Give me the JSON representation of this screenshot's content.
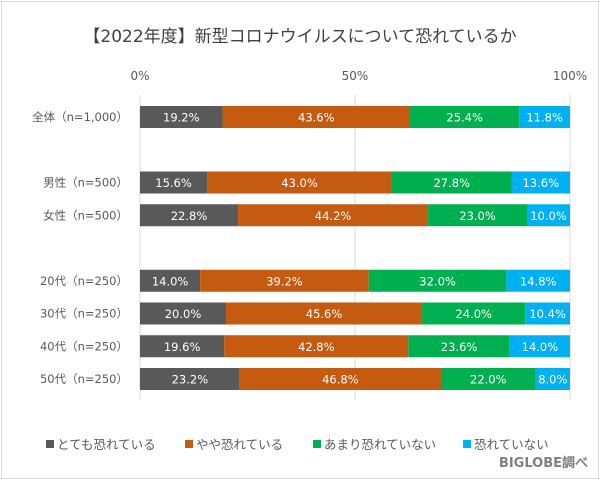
{
  "chart_data": {
    "type": "bar",
    "orientation": "horizontal",
    "stacked": "percent",
    "title": "【2022年度】新型コロナウイルスについて恐れているか",
    "categories": [
      "全体（n=1,000）",
      "男性（n=500）",
      "女性（n=500）",
      "20代（n=250）",
      "30代（n=250）",
      "40代（n=250）",
      "50代（n=250）"
    ],
    "xlim": [
      0,
      100
    ],
    "xticks": [
      "0%",
      "50%",
      "100%"
    ],
    "grid": true,
    "legend_position": "bottom",
    "series": [
      {
        "name": "とても恐れている",
        "color": "#595959",
        "values": [
          19.2,
          15.6,
          22.8,
          14.0,
          20.0,
          19.6,
          23.2
        ]
      },
      {
        "name": "やや恐れている",
        "color": "#c55a11",
        "values": [
          43.6,
          43.0,
          44.2,
          39.2,
          45.6,
          42.8,
          46.8
        ]
      },
      {
        "name": "あまり恐れていない",
        "color": "#00b050",
        "values": [
          25.4,
          27.8,
          23.0,
          32.0,
          24.0,
          23.6,
          22.0
        ]
      },
      {
        "name": "恐れていない",
        "color": "#00b0f0",
        "values": [
          11.8,
          13.6,
          10.0,
          14.8,
          10.4,
          14.0,
          8.0
        ]
      }
    ]
  },
  "source": "BIGLOBE調べ"
}
